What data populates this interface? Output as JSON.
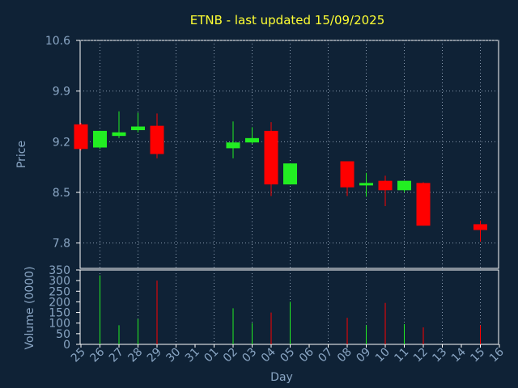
{
  "page": {
    "title": "ETNB - last updated 15/09/2025"
  },
  "colors": {
    "up": "#22ee22",
    "down": "#ff0000",
    "title": "#ffff33",
    "axis_text": "#8aa6c4",
    "background": "#0f2236"
  },
  "chart_data": [
    {
      "type": "candlestick",
      "title": "ETNB - last updated 15/09/2025",
      "xlabel": "",
      "ylabel": "Price",
      "ylim": [
        7.45,
        10.6
      ],
      "yticks": [
        "10.6",
        "9.9",
        "9.2",
        "8.5",
        "7.8"
      ],
      "ytick_values": [
        10.6,
        9.9,
        9.2,
        8.5,
        7.8
      ],
      "grid": true,
      "x": [
        "25",
        "26",
        "27",
        "28",
        "29",
        "30",
        "31",
        "01",
        "02",
        "03",
        "04",
        "05",
        "06",
        "07",
        "08",
        "09",
        "10",
        "11",
        "12",
        "13",
        "14",
        "15",
        "16"
      ],
      "candles": [
        {
          "day": "25",
          "open": 9.44,
          "high": 9.46,
          "low": 9.08,
          "close": 9.1
        },
        {
          "day": "26",
          "open": 9.12,
          "high": 9.35,
          "low": 9.1,
          "close": 9.35
        },
        {
          "day": "27",
          "open": 9.28,
          "high": 9.62,
          "low": 9.25,
          "close": 9.33
        },
        {
          "day": "28",
          "open": 9.36,
          "high": 9.6,
          "low": 9.33,
          "close": 9.41
        },
        {
          "day": "29",
          "open": 9.42,
          "high": 9.59,
          "low": 8.97,
          "close": 9.03
        },
        {
          "day": "02",
          "open": 9.11,
          "high": 9.48,
          "low": 8.97,
          "close": 9.19
        },
        {
          "day": "03",
          "open": 9.19,
          "high": 9.4,
          "low": 9.17,
          "close": 9.25
        },
        {
          "day": "04",
          "open": 9.35,
          "high": 9.47,
          "low": 8.45,
          "close": 8.61
        },
        {
          "day": "05",
          "open": 8.61,
          "high": 8.9,
          "low": 8.61,
          "close": 8.9
        },
        {
          "day": "08",
          "open": 8.93,
          "high": 8.93,
          "low": 8.45,
          "close": 8.57
        },
        {
          "day": "09",
          "open": 8.61,
          "high": 8.77,
          "low": 8.44,
          "close": 8.63
        },
        {
          "day": "10",
          "open": 8.66,
          "high": 8.73,
          "low": 8.31,
          "close": 8.53
        },
        {
          "day": "11",
          "open": 8.53,
          "high": 8.66,
          "low": 8.5,
          "close": 8.66
        },
        {
          "day": "12",
          "open": 8.63,
          "high": 8.64,
          "low": 8.04,
          "close": 8.04
        },
        {
          "day": "15",
          "open": 8.06,
          "high": 8.11,
          "low": 7.82,
          "close": 7.98
        }
      ]
    },
    {
      "type": "bar",
      "xlabel": "Day",
      "ylabel": "Volume (0000)",
      "ylim": [
        0,
        350
      ],
      "yticks": [
        "350",
        "300",
        "250",
        "200",
        "150",
        "100",
        "50",
        "0"
      ],
      "ytick_values": [
        350,
        300,
        250,
        200,
        150,
        100,
        50,
        0
      ],
      "grid": true,
      "categories": [
        "25",
        "26",
        "27",
        "28",
        "29",
        "30",
        "31",
        "01",
        "02",
        "03",
        "04",
        "05",
        "06",
        "07",
        "08",
        "09",
        "10",
        "11",
        "12",
        "13",
        "14",
        "15",
        "16"
      ],
      "bars": [
        {
          "day": "26",
          "value": 325,
          "direction": "up"
        },
        {
          "day": "27",
          "value": 90,
          "direction": "up"
        },
        {
          "day": "28",
          "value": 120,
          "direction": "up"
        },
        {
          "day": "29",
          "value": 300,
          "direction": "down"
        },
        {
          "day": "02",
          "value": 170,
          "direction": "up"
        },
        {
          "day": "03",
          "value": 100,
          "direction": "up"
        },
        {
          "day": "04",
          "value": 150,
          "direction": "down"
        },
        {
          "day": "05",
          "value": 200,
          "direction": "up"
        },
        {
          "day": "08",
          "value": 125,
          "direction": "down"
        },
        {
          "day": "09",
          "value": 90,
          "direction": "up"
        },
        {
          "day": "10",
          "value": 195,
          "direction": "down"
        },
        {
          "day": "11",
          "value": 95,
          "direction": "up"
        },
        {
          "day": "12",
          "value": 80,
          "direction": "down"
        },
        {
          "day": "15",
          "value": 90,
          "direction": "down"
        }
      ]
    }
  ]
}
